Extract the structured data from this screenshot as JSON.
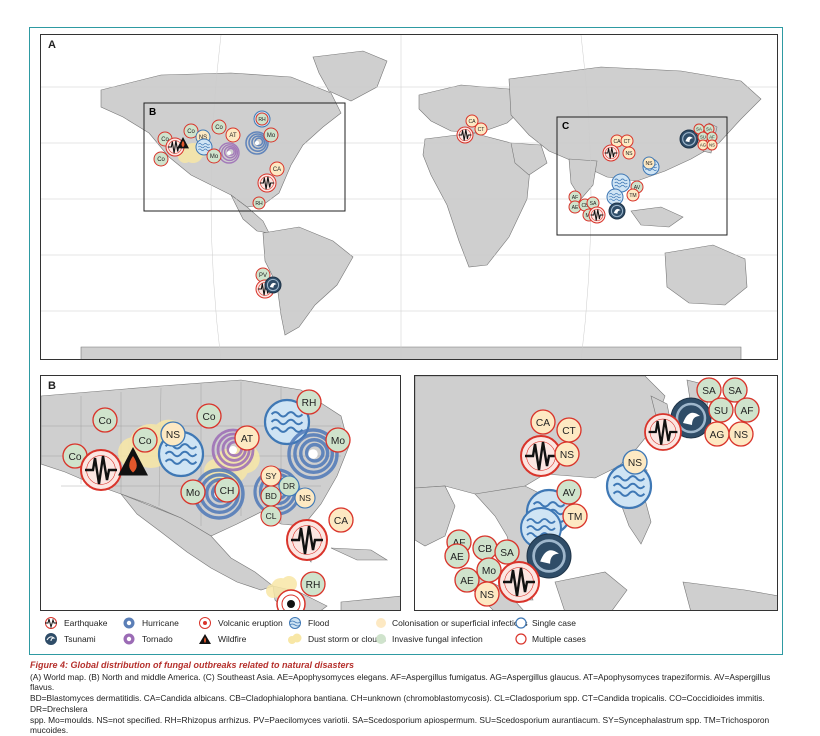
{
  "panels": {
    "a": "A",
    "b": "B",
    "c": "C"
  },
  "legend": {
    "earthquake": "Earthquake",
    "tsunami": "Tsunami",
    "hurricane": "Hurricane",
    "tornado": "Tornado",
    "volcanic": "Volcanic eruption",
    "wildfire": "Wildfire",
    "flood": "Flood",
    "dust": "Dust storm or clouds",
    "colonisation": "Colonisation or superficial infections",
    "invasive": "Invasive fungal infection",
    "single": "Single case",
    "multiple": "Multiple cases"
  },
  "colors": {
    "frame": "#2e9aa2",
    "land": "#cfcfcf",
    "sea": "#ffffff",
    "multiple": "#d9342b",
    "single": "#3f78b5",
    "colonisation": "#fde9c3",
    "invasive": "#cfe3cc",
    "flood": "#cfe4f4",
    "dust": "#f8e7a6",
    "caption_title": "#b5302c"
  },
  "map_a_markers": {
    "co1": "Co",
    "co2": "Co",
    "co3": "Co",
    "ns1": "NS",
    "co4": "Co",
    "at": "AT",
    "mo1": "Mo",
    "rh": "RH",
    "ca1": "CA",
    "pv": "PV",
    "ca2": "CA",
    "ct1": "CT",
    "ca3": "CA",
    "ct2": "CT",
    "ns2": "NS",
    "sa1": "SA",
    "sa2": "SA",
    "su": "SU",
    "af": "AF",
    "ag": "AG",
    "ns3": "NS",
    "ns4": "NS",
    "af2": "AF",
    "ae": "AE",
    "cb": "CB",
    "sa3": "SA",
    "mo2": "Mo",
    "av": "AV",
    "tm": "TM"
  },
  "map_b_markers": {
    "co1": "Co",
    "co2": "Co",
    "co3": "Co",
    "co4": "Co",
    "ns": "NS",
    "at": "AT",
    "rh1": "RH",
    "mo1": "Mo",
    "mo2": "Mo",
    "ch": "CH",
    "sy": "SY",
    "bd": "BD",
    "dr": "DR",
    "ns2": "NS",
    "cl": "CL",
    "ca": "CA",
    "rh2": "RH"
  },
  "map_c_markers": {
    "sa1": "SA",
    "sa2": "SA",
    "su": "SU",
    "af1": "AF",
    "ag": "AG",
    "ns1": "NS",
    "ca": "CA",
    "ct": "CT",
    "ns2": "NS",
    "ns3": "NS",
    "av": "AV",
    "tm": "TM",
    "af2": "AF",
    "ae1": "AE",
    "cb": "CB",
    "sa3": "SA",
    "ae2": "AE",
    "mo": "Mo",
    "ns4": "NS"
  },
  "caption": {
    "title": "Figure 4:",
    "title_rest": " Global distribution of fungal outbreaks related to natural disasters",
    "line1": "(A) World map. (B) North and middle America. (C) Southeast Asia. AE=Apophysomyces elegans. AF=Aspergillus fumigatus. AG=Aspergillus glaucus. AT=Apophysomyces trapeziformis. AV=Aspergillus flavus.",
    "line2": "BD=Blastomyces dermatitidis. CA=Candida albicans. CB=Cladophialophora bantiana. CH=unknown (chromoblastomycosis). CL=Cladosporium spp. CT=Candida tropicalis. CO=Coccidioides immitis. DR=Drechslera",
    "line3": "spp. Mo=moulds. NS=not specified. RH=Rhizopus arrhizus. PV=Paecilomyces variotii. SA=Scedosporium apiospermum. SU=Scedosporium aurantiacum. SY=Syncephalastrum spp. TM=Trichosporon mucoides."
  }
}
